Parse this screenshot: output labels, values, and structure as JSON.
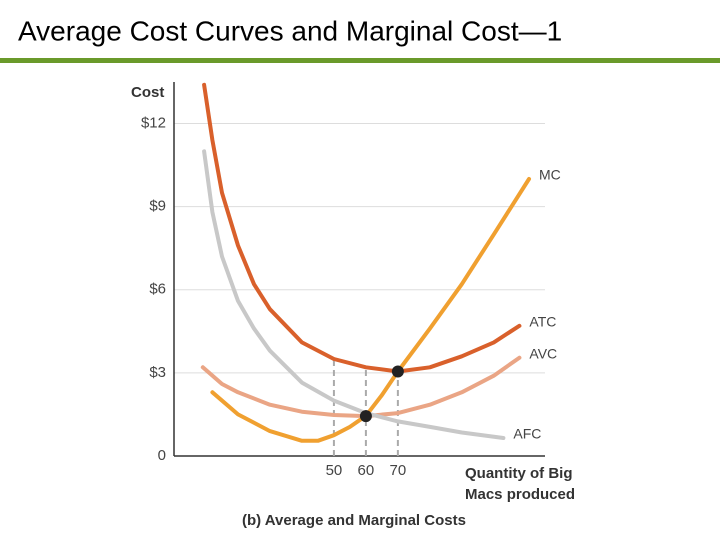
{
  "page_title": "Average Cost Curves and Marginal Cost—1",
  "chart_data": {
    "type": "line",
    "ylabel": "Cost",
    "xlabel": [
      "Quantity of Big",
      "Macs produced"
    ],
    "caption": "(b) Average and Marginal Costs",
    "xlim": [
      0,
      116
    ],
    "xticks": [
      50,
      60,
      70
    ],
    "ylim": [
      0,
      13.5
    ],
    "yticks": [
      0,
      {
        "value": 3,
        "label": "$3"
      },
      {
        "value": 6,
        "label": "$6"
      },
      {
        "value": 9,
        "label": "$9"
      },
      {
        "value": 12,
        "label": "$12"
      }
    ],
    "grid": true,
    "series": [
      {
        "name": "MC",
        "color": "#f0a030",
        "x": [
          12,
          20,
          30,
          40,
          45,
          50,
          55,
          60,
          65,
          70,
          80,
          90,
          100,
          111
        ],
        "values": [
          2.3,
          1.5,
          0.9,
          0.55,
          0.55,
          0.75,
          1.05,
          1.45,
          2.2,
          3.05,
          4.6,
          6.2,
          8.0,
          10
        ]
      },
      {
        "name": "ATC",
        "color": "#d9602b",
        "x": [
          9.4,
          12,
          15,
          20,
          25,
          30,
          40,
          50,
          60,
          70,
          80,
          90,
          100,
          108
        ],
        "values": [
          13.4,
          11.4,
          9.5,
          7.6,
          6.2,
          5.3,
          4.1,
          3.5,
          3.2,
          3.05,
          3.2,
          3.6,
          4.1,
          4.7
        ]
      },
      {
        "name": "AVC",
        "color": "#eaa585",
        "x": [
          9,
          15,
          20,
          30,
          40,
          50,
          60,
          70,
          80,
          90,
          100,
          108
        ],
        "values": [
          3.2,
          2.6,
          2.3,
          1.85,
          1.6,
          1.48,
          1.44,
          1.55,
          1.85,
          2.3,
          2.9,
          3.55
        ]
      },
      {
        "name": "AFC",
        "color": "#c8c8c8",
        "x": [
          9.4,
          12,
          15,
          20,
          25,
          30,
          40,
          50,
          60,
          70,
          80,
          90,
          103
        ],
        "values": [
          11,
          8.8,
          7.2,
          5.6,
          4.6,
          3.8,
          2.65,
          2.0,
          1.55,
          1.25,
          1.05,
          0.85,
          0.65
        ]
      }
    ],
    "points": {
      "x": [
        60,
        70
      ],
      "values": [
        1.44,
        3.05
      ]
    }
  }
}
